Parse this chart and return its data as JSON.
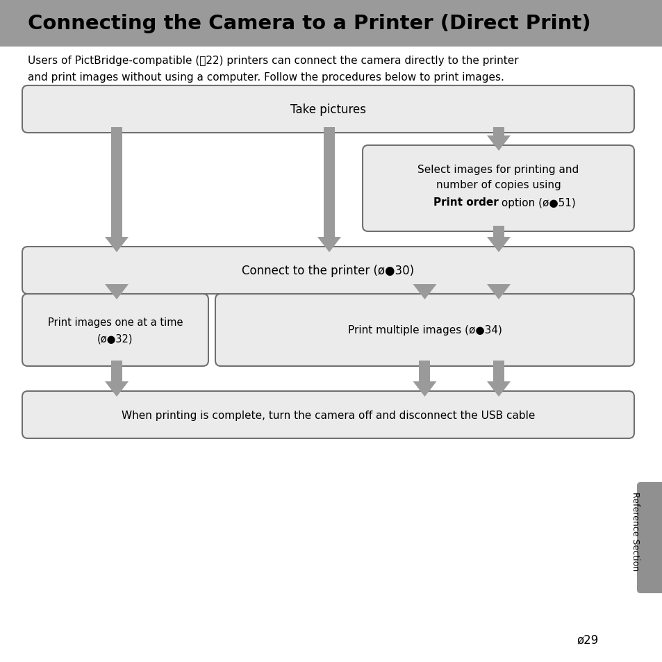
{
  "title": "Connecting the Camera to a Printer (Direct Print)",
  "title_bg": "#9a9a9a",
  "body_bg": "#ffffff",
  "box_bg": "#ebebeb",
  "box_border": "#707070",
  "arrow_color": "#9a9a9a",
  "tab_color": "#909090",
  "intro_line1": "Users of PictBridge-compatible (⛷22) printers can connect the camera directly to the printer",
  "intro_line2": "and print images without using a computer. Follow the procedures below to print images.",
  "ref_text": "Reference Section",
  "b1_text": "Take pictures",
  "b2_line1": "Select images for printing and",
  "b2_line2": "number of copies using",
  "b2_bold": "Print order",
  "b2_normal": " option (ø●51)",
  "b3_text": "Connect to the printer (ø●30)",
  "b4_line1": "Print images one at a time",
  "b4_line2": "(ø●32)",
  "b5_text": "Print multiple images (ø●34)",
  "b6_text": "When printing is complete, turn the camera off and disconnect the USB cable",
  "page_num": "29"
}
